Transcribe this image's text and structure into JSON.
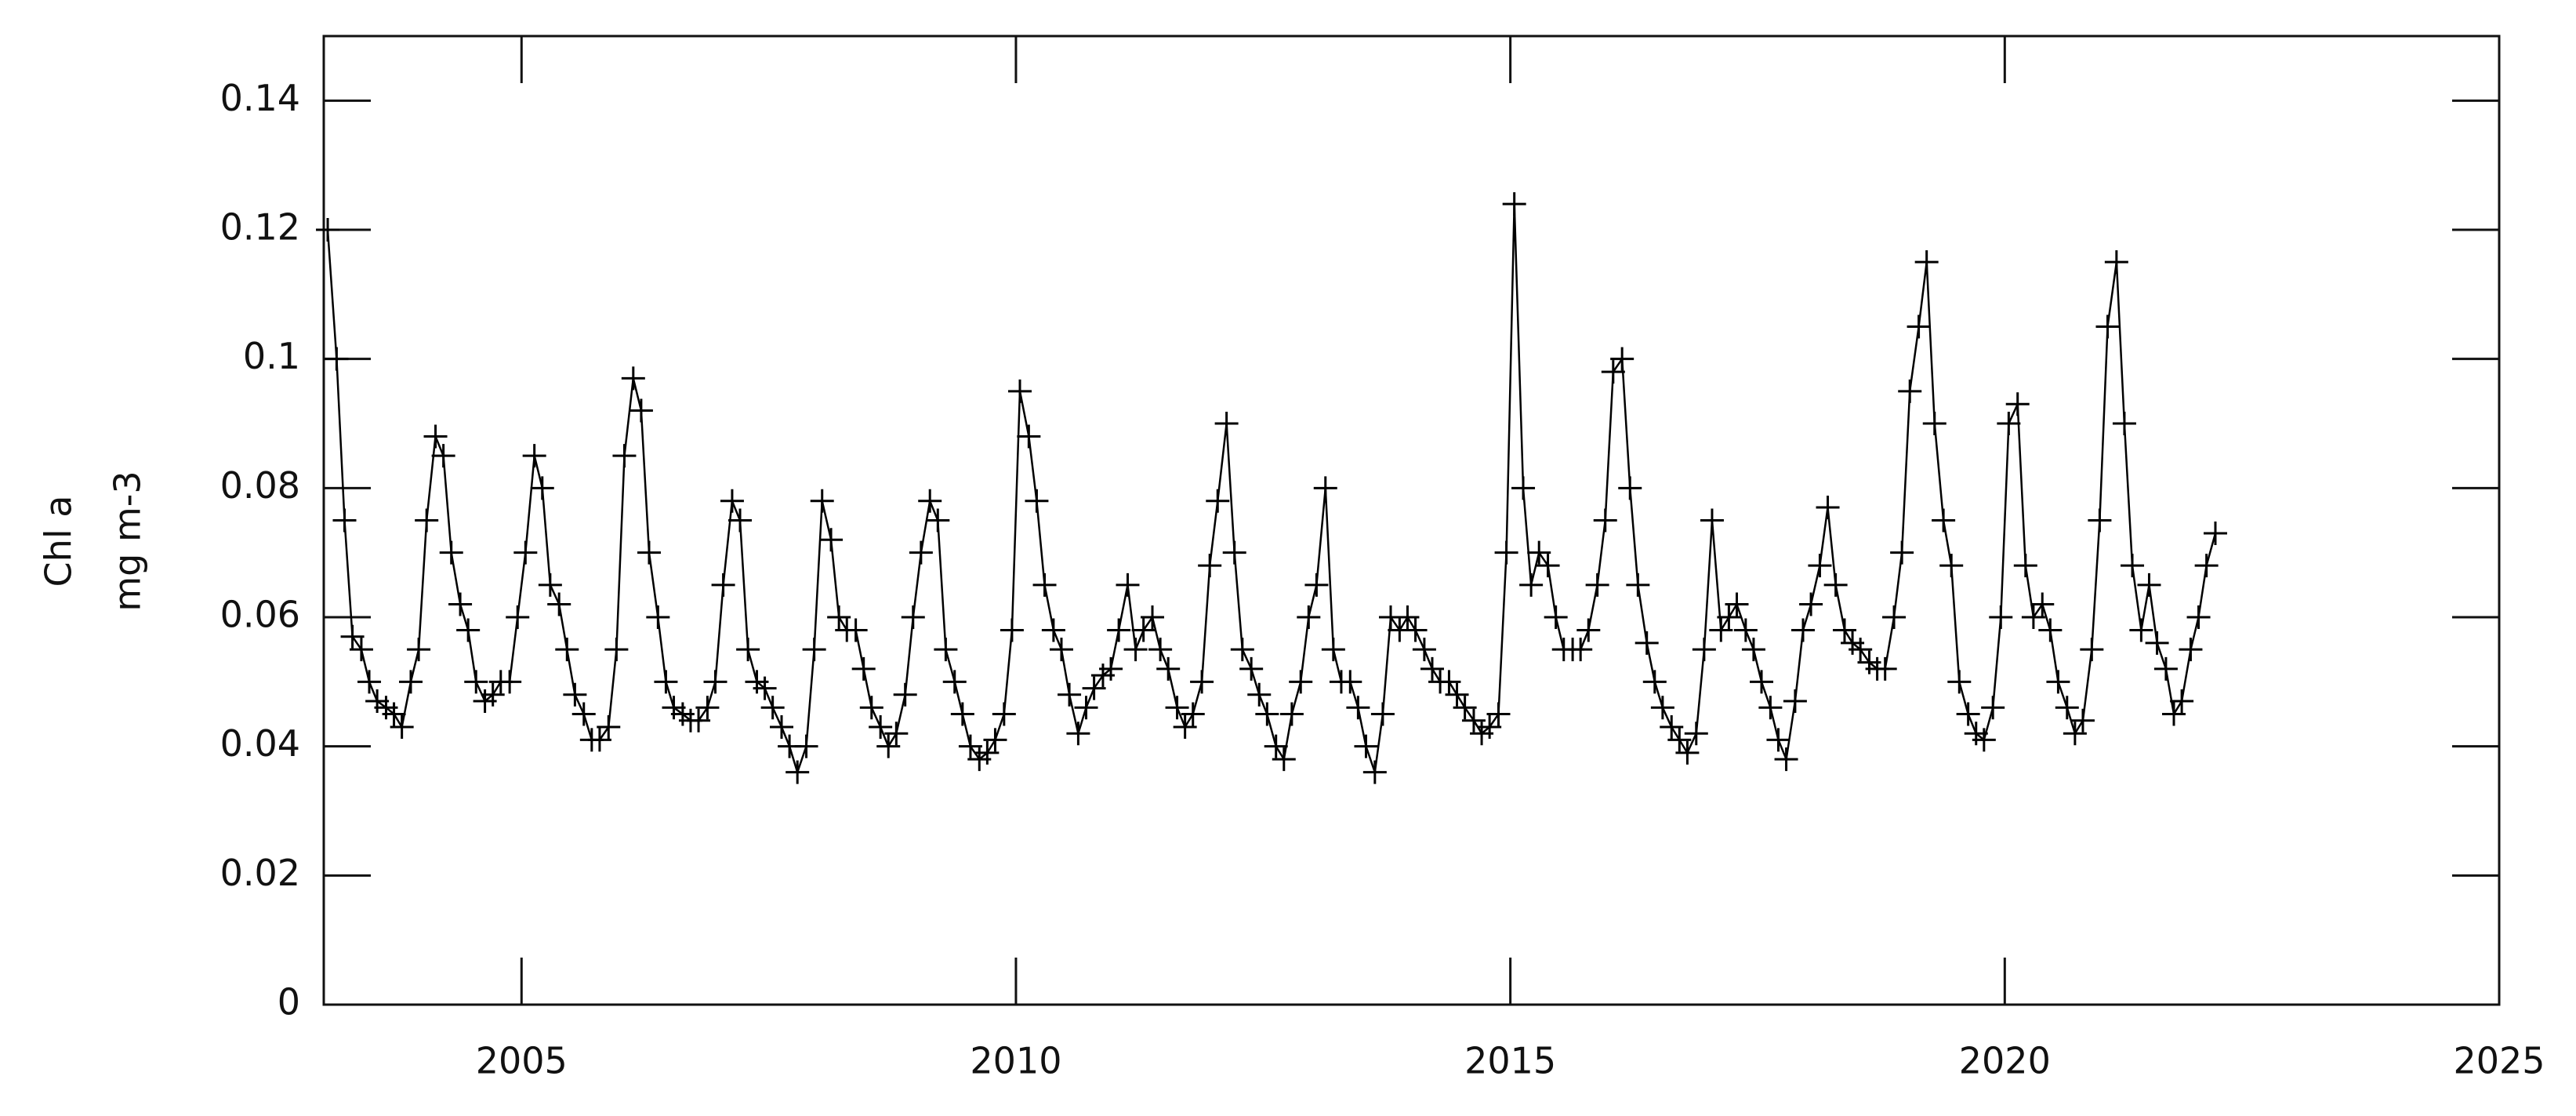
{
  "chart_data": {
    "type": "line",
    "marker": "+",
    "color": "#000000",
    "y_label": "Chl a",
    "y_unit": "mg m-3",
    "xlim": [
      2003,
      2025
    ],
    "xticks": [
      2005,
      2010,
      2015,
      2020,
      2025
    ],
    "ylim": [
      0,
      0.15
    ],
    "yticks": [
      0,
      0.02,
      0.04,
      0.06,
      0.08,
      0.1,
      0.12,
      0.14
    ],
    "x": [
      2003.04,
      2003.13,
      2003.21,
      2003.29,
      2003.38,
      2003.46,
      2003.54,
      2003.63,
      2003.71,
      2003.79,
      2003.88,
      2003.96,
      2004.04,
      2004.13,
      2004.21,
      2004.29,
      2004.38,
      2004.46,
      2004.54,
      2004.63,
      2004.71,
      2004.79,
      2004.88,
      2004.96,
      2005.04,
      2005.13,
      2005.21,
      2005.29,
      2005.38,
      2005.46,
      2005.54,
      2005.63,
      2005.71,
      2005.79,
      2005.88,
      2005.96,
      2006.04,
      2006.13,
      2006.21,
      2006.29,
      2006.38,
      2006.46,
      2006.54,
      2006.63,
      2006.71,
      2006.79,
      2006.88,
      2006.96,
      2007.04,
      2007.13,
      2007.21,
      2007.29,
      2007.38,
      2007.46,
      2007.54,
      2007.63,
      2007.71,
      2007.79,
      2007.88,
      2007.96,
      2008.04,
      2008.13,
      2008.21,
      2008.29,
      2008.38,
      2008.46,
      2008.54,
      2008.63,
      2008.71,
      2008.79,
      2008.88,
      2008.96,
      2009.04,
      2009.13,
      2009.21,
      2009.29,
      2009.38,
      2009.46,
      2009.54,
      2009.63,
      2009.71,
      2009.79,
      2009.88,
      2009.96,
      2010.04,
      2010.13,
      2010.21,
      2010.29,
      2010.38,
      2010.46,
      2010.54,
      2010.63,
      2010.71,
      2010.79,
      2010.88,
      2010.96,
      2011.04,
      2011.13,
      2011.21,
      2011.29,
      2011.38,
      2011.46,
      2011.54,
      2011.63,
      2011.71,
      2011.79,
      2011.88,
      2011.96,
      2012.04,
      2012.13,
      2012.21,
      2012.29,
      2012.38,
      2012.46,
      2012.54,
      2012.63,
      2012.71,
      2012.79,
      2012.88,
      2012.96,
      2013.04,
      2013.13,
      2013.21,
      2013.29,
      2013.38,
      2013.46,
      2013.54,
      2013.63,
      2013.71,
      2013.79,
      2013.88,
      2013.96,
      2014.04,
      2014.13,
      2014.21,
      2014.29,
      2014.38,
      2014.46,
      2014.54,
      2014.63,
      2014.71,
      2014.79,
      2014.88,
      2014.96,
      2015.04,
      2015.13,
      2015.21,
      2015.29,
      2015.38,
      2015.46,
      2015.54,
      2015.63,
      2015.71,
      2015.79,
      2015.88,
      2015.96,
      2016.04,
      2016.13,
      2016.21,
      2016.29,
      2016.38,
      2016.46,
      2016.54,
      2016.63,
      2016.71,
      2016.79,
      2016.88,
      2016.96,
      2017.04,
      2017.13,
      2017.21,
      2017.29,
      2017.38,
      2017.46,
      2017.54,
      2017.63,
      2017.71,
      2017.79,
      2017.88,
      2017.96,
      2018.04,
      2018.13,
      2018.21,
      2018.29,
      2018.38,
      2018.46,
      2018.54,
      2018.63,
      2018.71,
      2018.79,
      2018.88,
      2018.96,
      2019.04,
      2019.13,
      2019.21,
      2019.29,
      2019.38,
      2019.46,
      2019.54,
      2019.63,
      2019.71,
      2019.79,
      2019.88,
      2019.96,
      2020.04,
      2020.13,
      2020.21,
      2020.29,
      2020.38,
      2020.46,
      2020.54,
      2020.63,
      2020.71,
      2020.79,
      2020.88,
      2020.96,
      2021.04,
      2021.13,
      2021.21,
      2021.29,
      2021.38,
      2021.46,
      2021.54,
      2021.63,
      2021.71,
      2021.79,
      2021.88,
      2021.96,
      2022.04,
      2022.13
    ],
    "values": [
      0.12,
      0.1,
      0.075,
      0.057,
      0.055,
      0.05,
      0.047,
      0.046,
      0.045,
      0.043,
      0.05,
      0.055,
      0.075,
      0.088,
      0.085,
      0.07,
      0.062,
      0.058,
      0.05,
      0.047,
      0.048,
      0.05,
      0.05,
      0.06,
      0.07,
      0.085,
      0.08,
      0.065,
      0.062,
      0.055,
      0.048,
      0.045,
      0.041,
      0.041,
      0.043,
      0.055,
      0.085,
      0.097,
      0.092,
      0.07,
      0.06,
      0.05,
      0.046,
      0.045,
      0.044,
      0.044,
      0.046,
      0.05,
      0.065,
      0.078,
      0.075,
      0.055,
      0.05,
      0.049,
      0.046,
      0.043,
      0.04,
      0.036,
      0.04,
      0.055,
      0.078,
      0.072,
      0.06,
      0.058,
      0.058,
      0.052,
      0.046,
      0.043,
      0.04,
      0.042,
      0.048,
      0.06,
      0.07,
      0.078,
      0.075,
      0.055,
      0.05,
      0.045,
      0.04,
      0.038,
      0.039,
      0.041,
      0.045,
      0.058,
      0.095,
      0.088,
      0.078,
      0.065,
      0.058,
      0.055,
      0.048,
      0.042,
      0.046,
      0.049,
      0.051,
      0.052,
      0.058,
      0.065,
      0.055,
      0.058,
      0.06,
      0.055,
      0.052,
      0.046,
      0.043,
      0.045,
      0.05,
      0.068,
      0.078,
      0.09,
      0.07,
      0.055,
      0.052,
      0.048,
      0.045,
      0.04,
      0.038,
      0.045,
      0.05,
      0.06,
      0.065,
      0.08,
      0.055,
      0.05,
      0.05,
      0.046,
      0.04,
      0.036,
      0.045,
      0.06,
      0.058,
      0.06,
      0.058,
      0.055,
      0.052,
      0.05,
      0.05,
      0.048,
      0.046,
      0.044,
      0.042,
      0.043,
      0.045,
      0.07,
      0.124,
      0.08,
      0.065,
      0.07,
      0.068,
      0.06,
      0.055,
      0.055,
      0.055,
      0.058,
      0.065,
      0.075,
      0.098,
      0.1,
      0.08,
      0.065,
      0.056,
      0.05,
      0.046,
      0.043,
      0.041,
      0.039,
      0.042,
      0.055,
      0.075,
      0.058,
      0.06,
      0.062,
      0.058,
      0.055,
      0.05,
      0.046,
      0.041,
      0.038,
      0.047,
      0.058,
      0.062,
      0.068,
      0.077,
      0.065,
      0.058,
      0.056,
      0.055,
      0.053,
      0.052,
      0.052,
      0.06,
      0.07,
      0.095,
      0.105,
      0.115,
      0.09,
      0.075,
      0.068,
      0.05,
      0.045,
      0.042,
      0.041,
      0.046,
      0.06,
      0.09,
      0.093,
      0.068,
      0.06,
      0.062,
      0.058,
      0.05,
      0.046,
      0.042,
      0.044,
      0.055,
      0.075,
      0.105,
      0.115,
      0.09,
      0.068,
      0.058,
      0.065,
      0.056,
      0.052,
      0.045,
      0.047,
      0.055,
      0.06,
      0.068,
      0.073
    ]
  }
}
